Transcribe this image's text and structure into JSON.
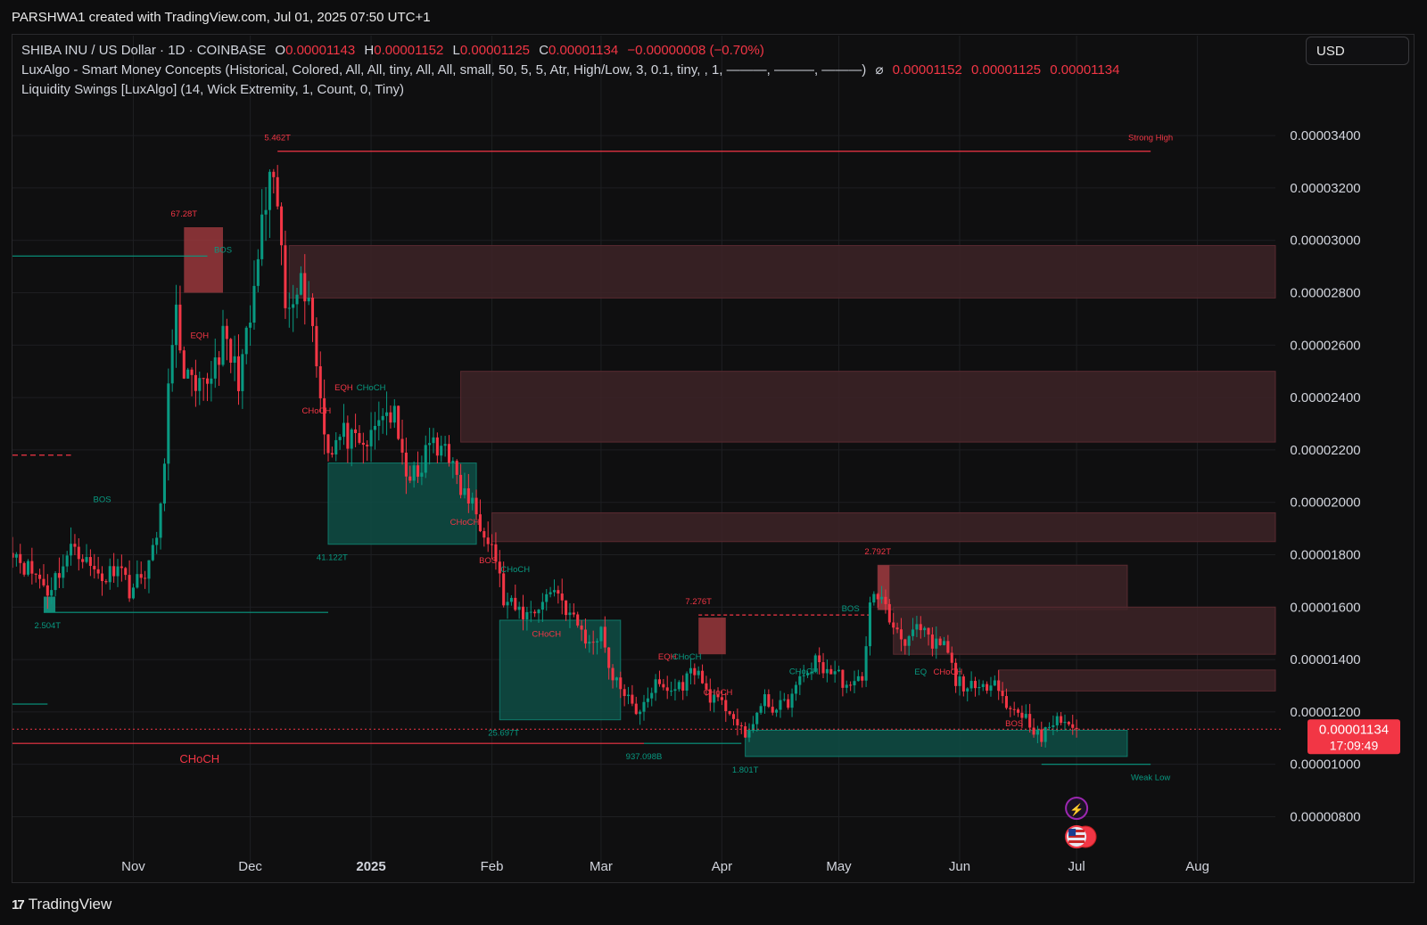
{
  "header": {
    "credit": "PARSHWA1 created with TradingView.com, Jul 01, 2025 07:50 UTC+1"
  },
  "legend": {
    "symbol": "SHIBA INU / US Dollar · 1D · COINBASE",
    "o_label": "O",
    "o_value": "0.00001143",
    "h_label": "H",
    "h_value": "0.00001152",
    "l_label": "L",
    "l_value": "0.00001125",
    "c_label": "C",
    "c_value": "0.00001134",
    "change": "−0.00000008 (−0.70%)",
    "indicator1": "LuxAlgo - Smart Money Concepts (Historical, Colored, All, All, tiny, All, All, small, 50, 5, 5, Atr, High/Low, 3, 0.1, tiny, , 1, ———, ———, ———)",
    "indicator1_symbol": "⌀",
    "indicator1_values": [
      "0.00001152",
      "0.00001125",
      "0.00001134"
    ],
    "indicator2": "Liquidity Swings [LuxAlgo] (14, Wick Extremity, 1, Count, 0, Tiny)"
  },
  "currency_button": "USD",
  "price_tag": {
    "price": "0.00001134",
    "countdown": "17:09:49"
  },
  "footer": {
    "brand": "TradingView",
    "mark": "17"
  },
  "colors": {
    "bull": "#089981",
    "bear": "#f23645",
    "bull_zone": "#0e4d45",
    "bear_zone": "#3d2327",
    "strong_bear_zone": "#5a2228"
  },
  "chart_data": {
    "type": "candlestick",
    "symbol": "SHIBA INU / US Dollar",
    "timeframe": "1D",
    "exchange": "COINBASE",
    "ylim": [
      7.2e-06,
      3.55e-05
    ],
    "y_ticks": [
      "0.00003400",
      "0.00003200",
      "0.00003000",
      "0.00002800",
      "0.00002600",
      "0.00002400",
      "0.00002200",
      "0.00002000",
      "0.00001800",
      "0.00001600",
      "0.00001400",
      "0.00001200",
      "0.00001000",
      "0.00000800"
    ],
    "y_tick_values": [
      3.4e-05,
      3.2e-05,
      3e-05,
      2.8e-05,
      2.6e-05,
      2.4e-05,
      2.2e-05,
      2e-05,
      1.8e-05,
      1.6e-05,
      1.4e-05,
      1.2e-05,
      1e-05,
      8e-06
    ],
    "x_start": "2024-10-01",
    "x_end": "2025-08-21",
    "x_ticks": [
      {
        "label": "Nov",
        "date": "2024-11-01"
      },
      {
        "label": "Dec",
        "date": "2024-12-01"
      },
      {
        "label": "2025",
        "date": "2025-01-01",
        "bold": true
      },
      {
        "label": "Feb",
        "date": "2025-02-01"
      },
      {
        "label": "Mar",
        "date": "2025-03-01"
      },
      {
        "label": "Apr",
        "date": "2025-04-01"
      },
      {
        "label": "May",
        "date": "2025-05-01"
      },
      {
        "label": "Jun",
        "date": "2025-06-01"
      },
      {
        "label": "Jul",
        "date": "2025-07-01"
      },
      {
        "label": "Aug",
        "date": "2025-08-01"
      }
    ],
    "anchors": [
      [
        "2024-10-01",
        1.83e-05
      ],
      [
        "2024-10-04",
        1.76e-05
      ],
      [
        "2024-10-08",
        1.71e-05
      ],
      [
        "2024-10-10",
        1.66e-05
      ],
      [
        "2024-10-13",
        1.74e-05
      ],
      [
        "2024-10-17",
        1.84e-05
      ],
      [
        "2024-10-21",
        1.75e-05
      ],
      [
        "2024-10-25",
        1.71e-05
      ],
      [
        "2024-10-28",
        1.78e-05
      ],
      [
        "2024-10-31",
        1.67e-05
      ],
      [
        "2024-11-03",
        1.71e-05
      ],
      [
        "2024-11-06",
        1.8e-05
      ],
      [
        "2024-11-08",
        1.96e-05
      ],
      [
        "2024-11-10",
        2.43e-05
      ],
      [
        "2024-11-12",
        2.7e-05
      ],
      [
        "2024-11-14",
        2.51e-05
      ],
      [
        "2024-11-17",
        2.4e-05
      ],
      [
        "2024-11-20",
        2.46e-05
      ],
      [
        "2024-11-24",
        2.62e-05
      ],
      [
        "2024-11-28",
        2.48e-05
      ],
      [
        "2024-12-01",
        2.68e-05
      ],
      [
        "2024-12-04",
        3.05e-05
      ],
      [
        "2024-12-06",
        3.2e-05
      ],
      [
        "2024-12-08",
        3.14e-05
      ],
      [
        "2024-12-10",
        2.74e-05
      ],
      [
        "2024-12-13",
        2.85e-05
      ],
      [
        "2024-12-16",
        2.8e-05
      ],
      [
        "2024-12-19",
        2.4e-05
      ],
      [
        "2024-12-21",
        2.2e-05
      ],
      [
        "2024-12-25",
        2.26e-05
      ],
      [
        "2024-12-29",
        2.2e-05
      ],
      [
        "2025-01-01",
        2.24e-05
      ],
      [
        "2025-01-04",
        2.35e-05
      ],
      [
        "2025-01-07",
        2.32e-05
      ],
      [
        "2025-01-09",
        2.15e-05
      ],
      [
        "2025-01-13",
        2.08e-05
      ],
      [
        "2025-01-16",
        2.24e-05
      ],
      [
        "2025-01-18",
        2.18e-05
      ],
      [
        "2025-01-20",
        2.25e-05
      ],
      [
        "2025-01-23",
        2.07e-05
      ],
      [
        "2025-01-26",
        2.01e-05
      ],
      [
        "2025-01-28",
        1.96e-05
      ],
      [
        "2025-01-31",
        1.88e-05
      ],
      [
        "2025-02-02",
        1.79e-05
      ],
      [
        "2025-02-04",
        1.62e-05
      ],
      [
        "2025-02-07",
        1.59e-05
      ],
      [
        "2025-02-10",
        1.57e-05
      ],
      [
        "2025-02-14",
        1.62e-05
      ],
      [
        "2025-02-17",
        1.68e-05
      ],
      [
        "2025-02-21",
        1.57e-05
      ],
      [
        "2025-02-24",
        1.51e-05
      ],
      [
        "2025-02-26",
        1.45e-05
      ],
      [
        "2025-03-01",
        1.52e-05
      ],
      [
        "2025-03-04",
        1.32e-05
      ],
      [
        "2025-03-07",
        1.28e-05
      ],
      [
        "2025-03-10",
        1.18e-05
      ],
      [
        "2025-03-12",
        1.25e-05
      ],
      [
        "2025-03-15",
        1.3e-05
      ],
      [
        "2025-03-19",
        1.28e-05
      ],
      [
        "2025-03-22",
        1.31e-05
      ],
      [
        "2025-03-25",
        1.37e-05
      ],
      [
        "2025-03-28",
        1.28e-05
      ],
      [
        "2025-03-31",
        1.23e-05
      ],
      [
        "2025-04-03",
        1.21e-05
      ],
      [
        "2025-04-07",
        1.09e-05
      ],
      [
        "2025-04-09",
        1.17e-05
      ],
      [
        "2025-04-12",
        1.24e-05
      ],
      [
        "2025-04-15",
        1.21e-05
      ],
      [
        "2025-04-18",
        1.24e-05
      ],
      [
        "2025-04-22",
        1.34e-05
      ],
      [
        "2025-04-25",
        1.39e-05
      ],
      [
        "2025-04-28",
        1.36e-05
      ],
      [
        "2025-05-01",
        1.34e-05
      ],
      [
        "2025-05-04",
        1.28e-05
      ],
      [
        "2025-05-07",
        1.34e-05
      ],
      [
        "2025-05-09",
        1.6e-05
      ],
      [
        "2025-05-11",
        1.66e-05
      ],
      [
        "2025-05-14",
        1.55e-05
      ],
      [
        "2025-05-18",
        1.48e-05
      ],
      [
        "2025-05-22",
        1.51e-05
      ],
      [
        "2025-05-25",
        1.45e-05
      ],
      [
        "2025-05-28",
        1.46e-05
      ],
      [
        "2025-05-31",
        1.32e-05
      ],
      [
        "2025-06-03",
        1.3e-05
      ],
      [
        "2025-06-06",
        1.27e-05
      ],
      [
        "2025-06-09",
        1.33e-05
      ],
      [
        "2025-06-11",
        1.31e-05
      ],
      [
        "2025-06-13",
        1.21e-05
      ],
      [
        "2025-06-16",
        1.21e-05
      ],
      [
        "2025-06-19",
        1.16e-05
      ],
      [
        "2025-06-22",
        1.09e-05
      ],
      [
        "2025-06-24",
        1.15e-05
      ],
      [
        "2025-06-27",
        1.17e-05
      ],
      [
        "2025-06-30",
        1.15e-05
      ],
      [
        "2025-07-01",
        1.134e-05
      ]
    ],
    "last_price": 1.134e-05,
    "bear_zones": [
      {
        "x1": "2024-12-11",
        "x2": "2025-08-21",
        "y1": 2.98e-05,
        "y2": 2.78e-05
      },
      {
        "x1": "2025-01-24",
        "x2": "2025-08-21",
        "y1": 2.5e-05,
        "y2": 2.23e-05
      },
      {
        "x1": "2025-02-01",
        "x2": "2025-08-21",
        "y1": 1.96e-05,
        "y2": 1.85e-05
      },
      {
        "x1": "2025-05-11",
        "x2": "2025-07-14",
        "y1": 1.76e-05,
        "y2": 1.59e-05
      },
      {
        "x1": "2025-05-15",
        "x2": "2025-08-21",
        "y1": 1.6e-05,
        "y2": 1.42e-05
      },
      {
        "x1": "2025-06-11",
        "x2": "2025-08-21",
        "y1": 1.36e-05,
        "y2": 1.28e-05
      }
    ],
    "strong_bear_blocks": [
      {
        "x1": "2024-11-14",
        "x2": "2024-11-24",
        "y1": 3.05e-05,
        "y2": 2.8e-05
      },
      {
        "x1": "2025-03-26",
        "x2": "2025-04-02",
        "y1": 1.56e-05,
        "y2": 1.42e-05
      },
      {
        "x1": "2025-05-11",
        "x2": "2025-05-14",
        "y1": 1.76e-05,
        "y2": 1.59e-05
      }
    ],
    "bull_zones": [
      {
        "x1": "2024-12-21",
        "x2": "2025-01-28",
        "y1": 2.15e-05,
        "y2": 1.84e-05
      },
      {
        "x1": "2025-02-03",
        "x2": "2025-03-06",
        "y1": 1.55e-05,
        "y2": 1.17e-05
      },
      {
        "x1": "2025-04-07",
        "x2": "2025-07-14",
        "y1": 1.13e-05,
        "y2": 1.03e-05
      }
    ],
    "small_bull_blocks": [
      {
        "x1": "2024-10-09",
        "x2": "2024-10-12",
        "y1": 1.64e-05,
        "y2": 1.58e-05
      }
    ],
    "h_lines": [
      {
        "x1": "2024-12-08",
        "x2": "2025-07-20",
        "y": 3.34e-05,
        "color": "#f23645",
        "dash": ""
      },
      {
        "x1": "2024-10-01",
        "x2": "2024-11-20",
        "y": 2.94e-05,
        "color": "#089981",
        "dash": ""
      },
      {
        "x1": "2024-10-01",
        "x2": "2024-10-16",
        "y": 2.18e-05,
        "color": "#f23645",
        "dash": "6,4"
      },
      {
        "x1": "2024-10-01",
        "x2": "2025-03-12",
        "y": 1.08e-05,
        "color": "#f23645",
        "dash": ""
      },
      {
        "x1": "2024-10-09",
        "x2": "2024-12-21",
        "y": 1.58e-05,
        "color": "#089981",
        "dash": ""
      },
      {
        "x1": "2024-10-01",
        "x2": "2024-10-10",
        "y": 1.23e-05,
        "color": "#089981",
        "dash": ""
      },
      {
        "x1": "2025-06-22",
        "x2": "2025-07-20",
        "y": 1e-05,
        "color": "#089981",
        "dash": ""
      },
      {
        "x1": "2025-03-26",
        "x2": "2025-05-09",
        "y": 1.57e-05,
        "color": "#f23645",
        "dash": "4,3"
      },
      {
        "x1": "2025-03-12",
        "x2": "2025-04-06",
        "y": 1.08e-05,
        "color": "#089981",
        "dash": ""
      }
    ],
    "labels": [
      {
        "text": "5.462T",
        "date": "2024-12-08",
        "y": 3.34e-05,
        "dy": -12,
        "color": "#f23645"
      },
      {
        "text": "Strong High",
        "date": "2025-07-20",
        "y": 3.34e-05,
        "dy": -12,
        "color": "#f23645"
      },
      {
        "text": "67.28T",
        "date": "2024-11-14",
        "y": 3.05e-05,
        "dy": -12,
        "color": "#f23645"
      },
      {
        "text": "BOS",
        "date": "2024-11-24",
        "y": 2.94e-05,
        "dy": -4,
        "color": "#089981"
      },
      {
        "text": "EQH",
        "date": "2024-11-18",
        "y": 2.62e-05,
        "dy": -2,
        "color": "#f23645"
      },
      {
        "text": "CHoCH",
        "date": "2024-12-18",
        "y": 2.4e-05,
        "dy": 18,
        "color": "#f23645"
      },
      {
        "text": "EQH",
        "date": "2024-12-25",
        "y": 2.4e-05,
        "dy": -8,
        "color": "#f23645"
      },
      {
        "text": "CHoCH",
        "date": "2025-01-01",
        "y": 2.4e-05,
        "dy": -8,
        "color": "#089981"
      },
      {
        "text": "41.122T",
        "date": "2024-12-22",
        "y": 1.84e-05,
        "dy": 18,
        "color": "#089981"
      },
      {
        "text": "CHoCH",
        "date": "2025-01-25",
        "y": 1.9e-05,
        "dy": -4,
        "color": "#f23645"
      },
      {
        "text": "BOS",
        "date": "2024-10-24",
        "y": 1.98e-05,
        "dy": -6,
        "color": "#089981"
      },
      {
        "text": "2.504T",
        "date": "2024-10-10",
        "y": 1.58e-05,
        "dy": 18,
        "color": "#089981"
      },
      {
        "text": "BOS",
        "date": "2025-01-31",
        "y": 1.76e-05,
        "dy": -2,
        "color": "#f23645"
      },
      {
        "text": "CHoCH",
        "date": "2025-02-07",
        "y": 1.72e-05,
        "dy": -4,
        "color": "#089981"
      },
      {
        "text": "CHoCH",
        "date": "2025-02-15",
        "y": 1.48e-05,
        "dy": -2,
        "color": "#f23645"
      },
      {
        "text": "25.697T",
        "date": "2025-02-04",
        "y": 1.17e-05,
        "dy": 18,
        "color": "#089981"
      },
      {
        "text": "CHoCH",
        "date": "2024-11-18",
        "y": 1.08e-05,
        "dy": 22,
        "color": "#f23645",
        "size": 13
      },
      {
        "text": "EQH",
        "date": "2025-03-18",
        "y": 1.38e-05,
        "dy": -6,
        "color": "#f23645"
      },
      {
        "text": "CHoCH",
        "date": "2025-03-23",
        "y": 1.38e-05,
        "dy": -6,
        "color": "#089981"
      },
      {
        "text": "7.276T",
        "date": "2025-03-26",
        "y": 1.57e-05,
        "dy": -12,
        "color": "#f23645"
      },
      {
        "text": "937.098B",
        "date": "2025-03-12",
        "y": 1.08e-05,
        "dy": 18,
        "color": "#089981"
      },
      {
        "text": "CHoCH",
        "date": "2025-03-31",
        "y": 1.25e-05,
        "dy": -4,
        "color": "#f23645"
      },
      {
        "text": "1.801T",
        "date": "2025-04-07",
        "y": 1.03e-05,
        "dy": 18,
        "color": "#089981"
      },
      {
        "text": "CHoCH",
        "date": "2025-04-22",
        "y": 1.33e-05,
        "dy": -4,
        "color": "#089981"
      },
      {
        "text": "BOS",
        "date": "2025-05-04",
        "y": 1.57e-05,
        "dy": -4,
        "color": "#089981"
      },
      {
        "text": "2.792T",
        "date": "2025-05-11",
        "y": 1.76e-05,
        "dy": -12,
        "color": "#f23645"
      },
      {
        "text": "EQ",
        "date": "2025-05-22",
        "y": 1.35e-05,
        "dy": 2,
        "color": "#089981"
      },
      {
        "text": "CHoCH",
        "date": "2025-05-29",
        "y": 1.35e-05,
        "dy": 2,
        "color": "#f23645"
      },
      {
        "text": "BOS",
        "date": "2025-06-15",
        "y": 1.18e-05,
        "dy": 10,
        "color": "#f23645"
      },
      {
        "text": "Weak Low",
        "date": "2025-07-20",
        "y": 1e-05,
        "dy": 18,
        "color": "#089981"
      }
    ]
  }
}
